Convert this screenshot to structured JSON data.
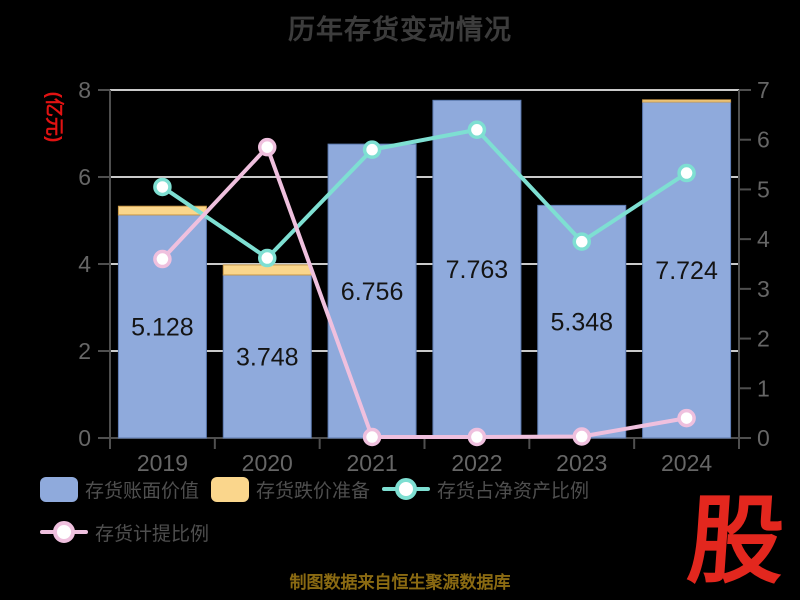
{
  "title": "历年存货变动情况",
  "source_note": "制图数据来自恒生聚源数据库",
  "logo_text": "股",
  "colors": {
    "background": "#000000",
    "title": "#3c3c3c",
    "axis_line": "#4f4f4f",
    "axis_text": "#666666",
    "grid_line": "#cacaca",
    "bar_label": "#141414",
    "marker_fill": "#ffffff",
    "y_axis_name": "#e11212",
    "legend_text": "#4f4f4f",
    "source_note": "#8a6a12",
    "logo": "#e3271e"
  },
  "chart_data": {
    "type": "bar",
    "subtype": "stacked-bar-with-lines",
    "title": "历年存货变动情况",
    "categories": [
      "2019",
      "2020",
      "2021",
      "2022",
      "2023",
      "2024"
    ],
    "series": [
      {
        "name": "存货账面价值",
        "type": "bar",
        "stack": "inventory",
        "axis": "left",
        "color": "#8FAADC",
        "values": [
          5.128,
          3.748,
          6.756,
          7.763,
          5.348,
          7.724
        ],
        "labels": [
          "5.128",
          "3.748",
          "6.756",
          "7.763",
          "5.348",
          "7.724"
        ]
      },
      {
        "name": "存货跌价准备",
        "type": "bar",
        "stack": "inventory",
        "axis": "left",
        "color": "#FAD68C",
        "values": [
          0.2,
          0.23,
          0,
          0,
          0,
          0.05
        ]
      },
      {
        "name": "存货占净资产比例",
        "type": "line",
        "axis": "right",
        "color": "#7EDFD2",
        "values": [
          5.05,
          3.62,
          5.8,
          6.2,
          3.95,
          5.33
        ]
      },
      {
        "name": "存货计提比例",
        "type": "line",
        "axis": "right",
        "color": "#EFC0DE",
        "values": [
          3.6,
          5.85,
          0.02,
          0.02,
          0.03,
          0.4
        ]
      }
    ],
    "left_axis": {
      "name": "(亿元)",
      "min": 0,
      "max": 8,
      "ticks": [
        0,
        2,
        4,
        6,
        8
      ]
    },
    "right_axis": {
      "min": 0,
      "max": 7,
      "ticks": [
        0,
        1,
        2,
        3,
        4,
        5,
        6,
        7
      ]
    },
    "grid": true,
    "legend_position": "bottom-left"
  }
}
